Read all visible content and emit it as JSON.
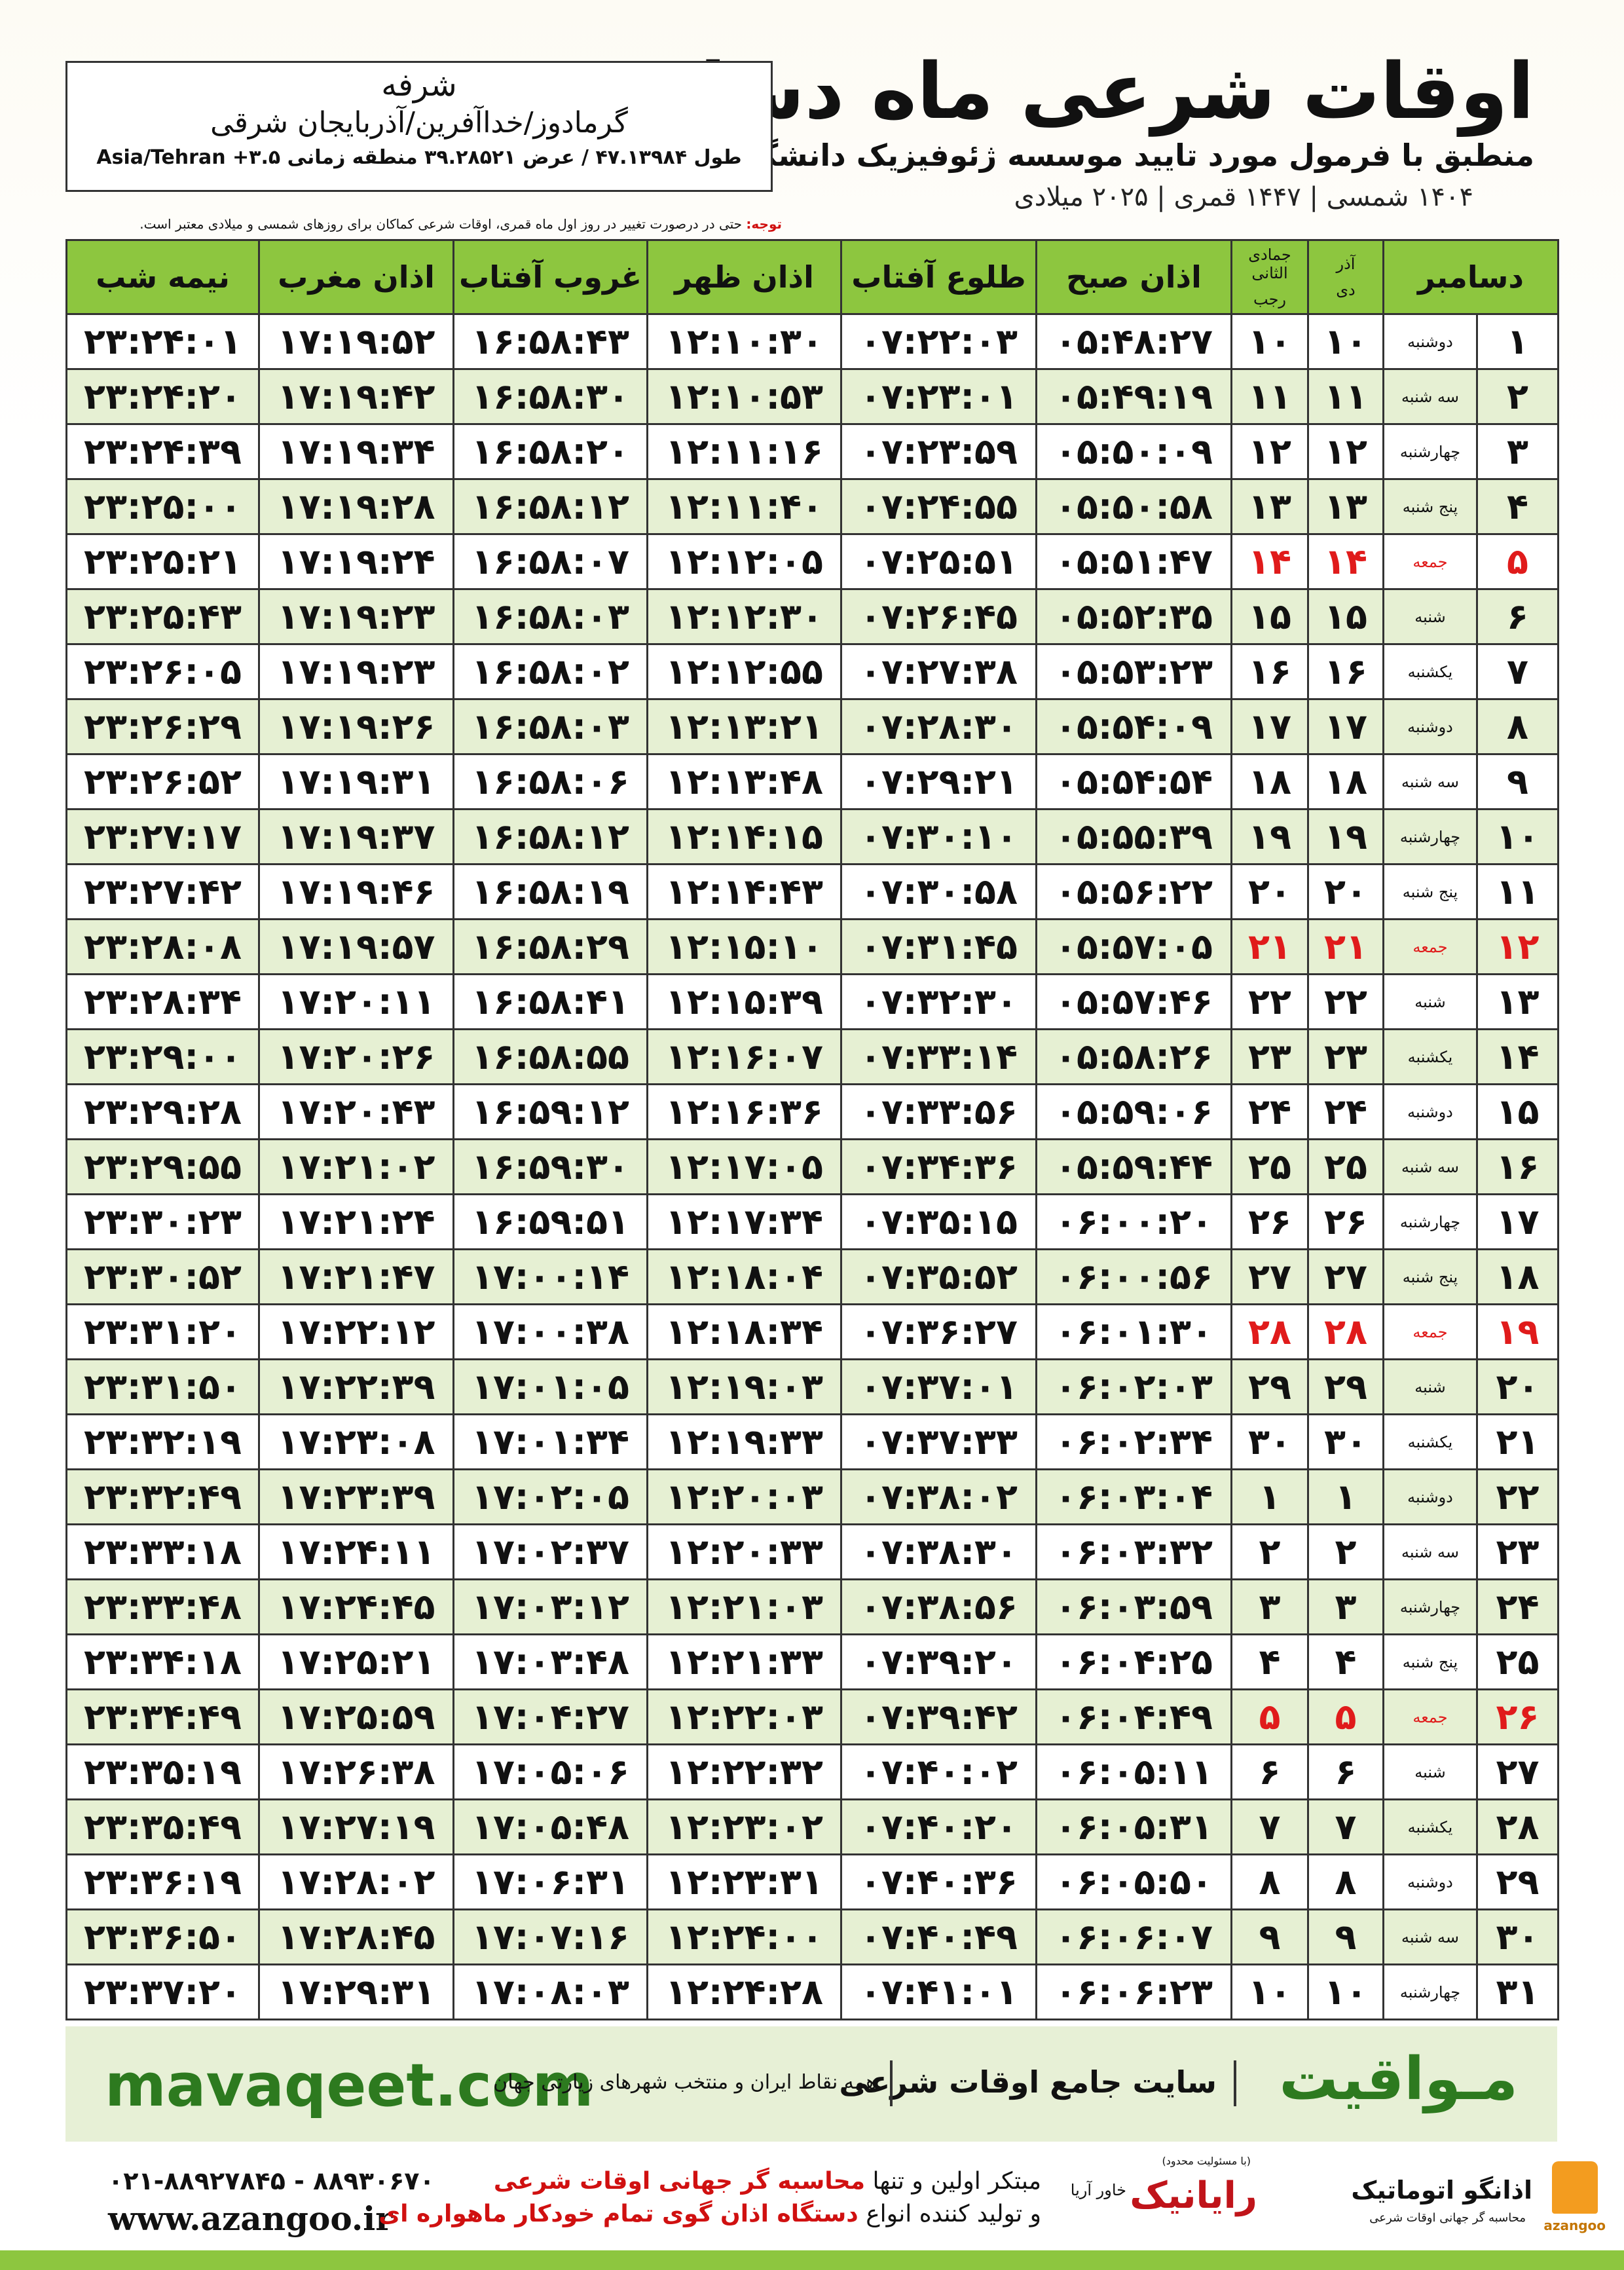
{
  "header": {
    "title": "اوقات شرعی ماه دسامبر",
    "subtitle": "منطبق با فرمول مورد تایید موسسه ژئوفیزیک دانشگاه تهران",
    "date_line": "۱۴۰۴ شمسی | ۱۴۴۷ قمری | ۲۰۲۵ میلادی"
  },
  "location": {
    "name": "شرفه",
    "region": "گرمادوز/خداآفرین/آذربایجان شرقی",
    "coords": "طول ۴۷.۱۳۹۸۴ / عرض ۳۹.۲۸۵۲۱ منطقه زمانی ۳.۵+ Asia/Tehran"
  },
  "note": {
    "label": "توجه:",
    "text": "حتی در درصورت تغییر در روز اول ماه قمری، اوقات شرعی کماکان برای روزهای شمسی و میلادی معتبر است."
  },
  "table": {
    "columns": [
      "دسامبر",
      [
        "آذر",
        "دی"
      ],
      [
        "جمادی الثانی",
        "رجب"
      ],
      "اذان صبح",
      "طلوع آفتاب",
      "اذان ظهر",
      "غروب آفتاب",
      "اذان مغرب",
      "نیمه شب"
    ],
    "highlight_rows": [
      4,
      11,
      18,
      25
    ],
    "rows": [
      [
        "۱",
        "دوشنبه",
        "۱۰",
        "۱۰",
        "۰۵:۴۸:۲۷",
        "۰۷:۲۲:۰۳",
        "۱۲:۱۰:۳۰",
        "۱۶:۵۸:۴۳",
        "۱۷:۱۹:۵۲",
        "۲۳:۲۴:۰۱"
      ],
      [
        "۲",
        "سه شنبه",
        "۱۱",
        "۱۱",
        "۰۵:۴۹:۱۹",
        "۰۷:۲۳:۰۱",
        "۱۲:۱۰:۵۳",
        "۱۶:۵۸:۳۰",
        "۱۷:۱۹:۴۲",
        "۲۳:۲۴:۲۰"
      ],
      [
        "۳",
        "چهارشنبه",
        "۱۲",
        "۱۲",
        "۰۵:۵۰:۰۹",
        "۰۷:۲۳:۵۹",
        "۱۲:۱۱:۱۶",
        "۱۶:۵۸:۲۰",
        "۱۷:۱۹:۳۴",
        "۲۳:۲۴:۳۹"
      ],
      [
        "۴",
        "پنج شنبه",
        "۱۳",
        "۱۳",
        "۰۵:۵۰:۵۸",
        "۰۷:۲۴:۵۵",
        "۱۲:۱۱:۴۰",
        "۱۶:۵۸:۱۲",
        "۱۷:۱۹:۲۸",
        "۲۳:۲۵:۰۰"
      ],
      [
        "۵",
        "جمعه",
        "۱۴",
        "۱۴",
        "۰۵:۵۱:۴۷",
        "۰۷:۲۵:۵۱",
        "۱۲:۱۲:۰۵",
        "۱۶:۵۸:۰۷",
        "۱۷:۱۹:۲۴",
        "۲۳:۲۵:۲۱"
      ],
      [
        "۶",
        "شنبه",
        "۱۵",
        "۱۵",
        "۰۵:۵۲:۳۵",
        "۰۷:۲۶:۴۵",
        "۱۲:۱۲:۳۰",
        "۱۶:۵۸:۰۳",
        "۱۷:۱۹:۲۳",
        "۲۳:۲۵:۴۳"
      ],
      [
        "۷",
        "یکشنبه",
        "۱۶",
        "۱۶",
        "۰۵:۵۳:۲۳",
        "۰۷:۲۷:۳۸",
        "۱۲:۱۲:۵۵",
        "۱۶:۵۸:۰۲",
        "۱۷:۱۹:۲۳",
        "۲۳:۲۶:۰۵"
      ],
      [
        "۸",
        "دوشنبه",
        "۱۷",
        "۱۷",
        "۰۵:۵۴:۰۹",
        "۰۷:۲۸:۳۰",
        "۱۲:۱۳:۲۱",
        "۱۶:۵۸:۰۳",
        "۱۷:۱۹:۲۶",
        "۲۳:۲۶:۲۹"
      ],
      [
        "۹",
        "سه شنبه",
        "۱۸",
        "۱۸",
        "۰۵:۵۴:۵۴",
        "۰۷:۲۹:۲۱",
        "۱۲:۱۳:۴۸",
        "۱۶:۵۸:۰۶",
        "۱۷:۱۹:۳۱",
        "۲۳:۲۶:۵۲"
      ],
      [
        "۱۰",
        "چهارشنبه",
        "۱۹",
        "۱۹",
        "۰۵:۵۵:۳۹",
        "۰۷:۳۰:۱۰",
        "۱۲:۱۴:۱۵",
        "۱۶:۵۸:۱۲",
        "۱۷:۱۹:۳۷",
        "۲۳:۲۷:۱۷"
      ],
      [
        "۱۱",
        "پنج شنبه",
        "۲۰",
        "۲۰",
        "۰۵:۵۶:۲۲",
        "۰۷:۳۰:۵۸",
        "۱۲:۱۴:۴۳",
        "۱۶:۵۸:۱۹",
        "۱۷:۱۹:۴۶",
        "۲۳:۲۷:۴۲"
      ],
      [
        "۱۲",
        "جمعه",
        "۲۱",
        "۲۱",
        "۰۵:۵۷:۰۵",
        "۰۷:۳۱:۴۵",
        "۱۲:۱۵:۱۰",
        "۱۶:۵۸:۲۹",
        "۱۷:۱۹:۵۷",
        "۲۳:۲۸:۰۸"
      ],
      [
        "۱۳",
        "شنبه",
        "۲۲",
        "۲۲",
        "۰۵:۵۷:۴۶",
        "۰۷:۳۲:۳۰",
        "۱۲:۱۵:۳۹",
        "۱۶:۵۸:۴۱",
        "۱۷:۲۰:۱۱",
        "۲۳:۲۸:۳۴"
      ],
      [
        "۱۴",
        "یکشنبه",
        "۲۳",
        "۲۳",
        "۰۵:۵۸:۲۶",
        "۰۷:۳۳:۱۴",
        "۱۲:۱۶:۰۷",
        "۱۶:۵۸:۵۵",
        "۱۷:۲۰:۲۶",
        "۲۳:۲۹:۰۰"
      ],
      [
        "۱۵",
        "دوشنبه",
        "۲۴",
        "۲۴",
        "۰۵:۵۹:۰۶",
        "۰۷:۳۳:۵۶",
        "۱۲:۱۶:۳۶",
        "۱۶:۵۹:۱۲",
        "۱۷:۲۰:۴۳",
        "۲۳:۲۹:۲۸"
      ],
      [
        "۱۶",
        "سه شنبه",
        "۲۵",
        "۲۵",
        "۰۵:۵۹:۴۴",
        "۰۷:۳۴:۳۶",
        "۱۲:۱۷:۰۵",
        "۱۶:۵۹:۳۰",
        "۱۷:۲۱:۰۲",
        "۲۳:۲۹:۵۵"
      ],
      [
        "۱۷",
        "چهارشنبه",
        "۲۶",
        "۲۶",
        "۰۶:۰۰:۲۰",
        "۰۷:۳۵:۱۵",
        "۱۲:۱۷:۳۴",
        "۱۶:۵۹:۵۱",
        "۱۷:۲۱:۲۴",
        "۲۳:۳۰:۲۳"
      ],
      [
        "۱۸",
        "پنج شنبه",
        "۲۷",
        "۲۷",
        "۰۶:۰۰:۵۶",
        "۰۷:۳۵:۵۲",
        "۱۲:۱۸:۰۴",
        "۱۷:۰۰:۱۴",
        "۱۷:۲۱:۴۷",
        "۲۳:۳۰:۵۲"
      ],
      [
        "۱۹",
        "جمعه",
        "۲۸",
        "۲۸",
        "۰۶:۰۱:۳۰",
        "۰۷:۳۶:۲۷",
        "۱۲:۱۸:۳۴",
        "۱۷:۰۰:۳۸",
        "۱۷:۲۲:۱۲",
        "۲۳:۳۱:۲۰"
      ],
      [
        "۲۰",
        "شنبه",
        "۲۹",
        "۲۹",
        "۰۶:۰۲:۰۳",
        "۰۷:۳۷:۰۱",
        "۱۲:۱۹:۰۳",
        "۱۷:۰۱:۰۵",
        "۱۷:۲۲:۳۹",
        "۲۳:۳۱:۵۰"
      ],
      [
        "۲۱",
        "یکشنبه",
        "۳۰",
        "۳۰",
        "۰۶:۰۲:۳۴",
        "۰۷:۳۷:۳۳",
        "۱۲:۱۹:۳۳",
        "۱۷:۰۱:۳۴",
        "۱۷:۲۳:۰۸",
        "۲۳:۳۲:۱۹"
      ],
      [
        "۲۲",
        "دوشنبه",
        "۱",
        "۱",
        "۰۶:۰۳:۰۴",
        "۰۷:۳۸:۰۲",
        "۱۲:۲۰:۰۳",
        "۱۷:۰۲:۰۵",
        "۱۷:۲۳:۳۹",
        "۲۳:۳۲:۴۹"
      ],
      [
        "۲۳",
        "سه شنبه",
        "۲",
        "۲",
        "۰۶:۰۳:۳۲",
        "۰۷:۳۸:۳۰",
        "۱۲:۲۰:۳۳",
        "۱۷:۰۲:۳۷",
        "۱۷:۲۴:۱۱",
        "۲۳:۳۳:۱۸"
      ],
      [
        "۲۴",
        "چهارشنبه",
        "۳",
        "۳",
        "۰۶:۰۳:۵۹",
        "۰۷:۳۸:۵۶",
        "۱۲:۲۱:۰۳",
        "۱۷:۰۳:۱۲",
        "۱۷:۲۴:۴۵",
        "۲۳:۳۳:۴۸"
      ],
      [
        "۲۵",
        "پنج شنبه",
        "۴",
        "۴",
        "۰۶:۰۴:۲۵",
        "۰۷:۳۹:۲۰",
        "۱۲:۲۱:۳۳",
        "۱۷:۰۳:۴۸",
        "۱۷:۲۵:۲۱",
        "۲۳:۳۴:۱۸"
      ],
      [
        "۲۶",
        "جمعه",
        "۵",
        "۵",
        "۰۶:۰۴:۴۹",
        "۰۷:۳۹:۴۲",
        "۱۲:۲۲:۰۳",
        "۱۷:۰۴:۲۷",
        "۱۷:۲۵:۵۹",
        "۲۳:۳۴:۴۹"
      ],
      [
        "۲۷",
        "شنبه",
        "۶",
        "۶",
        "۰۶:۰۵:۱۱",
        "۰۷:۴۰:۰۲",
        "۱۲:۲۲:۳۲",
        "۱۷:۰۵:۰۶",
        "۱۷:۲۶:۳۸",
        "۲۳:۳۵:۱۹"
      ],
      [
        "۲۸",
        "یکشنبه",
        "۷",
        "۷",
        "۰۶:۰۵:۳۱",
        "۰۷:۴۰:۲۰",
        "۱۲:۲۳:۰۲",
        "۱۷:۰۵:۴۸",
        "۱۷:۲۷:۱۹",
        "۲۳:۳۵:۴۹"
      ],
      [
        "۲۹",
        "دوشنبه",
        "۸",
        "۸",
        "۰۶:۰۵:۵۰",
        "۰۷:۴۰:۳۶",
        "۱۲:۲۳:۳۱",
        "۱۷:۰۶:۳۱",
        "۱۷:۲۸:۰۲",
        "۲۳:۳۶:۱۹"
      ],
      [
        "۳۰",
        "سه شنبه",
        "۹",
        "۹",
        "۰۶:۰۶:۰۷",
        "۰۷:۴۰:۴۹",
        "۱۲:۲۴:۰۰",
        "۱۷:۰۷:۱۶",
        "۱۷:۲۸:۴۵",
        "۲۳:۳۶:۵۰"
      ],
      [
        "۳۱",
        "چهارشنبه",
        "۱۰",
        "۱۰",
        "۰۶:۰۶:۲۳",
        "۰۷:۴۱:۰۱",
        "۱۲:۲۴:۲۸",
        "۱۷:۰۸:۰۳",
        "۱۷:۲۹:۳۱",
        "۲۳:۳۷:۲۰"
      ]
    ]
  },
  "banner": {
    "brand": "مـواقیت",
    "tagline": "سایت جامع اوقات شرعی",
    "coverage": "همه نقاط ایران و منتخب شهرهای زیارتی جهان",
    "url": "mavaqeet.com"
  },
  "contact": {
    "phones": "۰۲۱-۸۸۹۲۷۸۴۵ - ۸۸۹۳۰۶۷۰",
    "website": "www.azangoo.ir",
    "line1_a": "مبتکر اولین و تنها",
    "line1_b": "محاسبه گر جهانی اوقات شرعی",
    "line2_a": "و تولید کننده انواع",
    "line2_b": "دستگاه اذان گوی تمام خودکار ماهواره ای",
    "logos": {
      "raynik": "رایانیک",
      "khavar": "خاور آریا",
      "limited": "(با مسئولیت محدود)",
      "azangoo_fa": "اذانگو اتوماتیک",
      "azangoo_sub": "محاسبه گر جهانی اوقات شرعی",
      "azangoo_en": "azangoo"
    }
  }
}
